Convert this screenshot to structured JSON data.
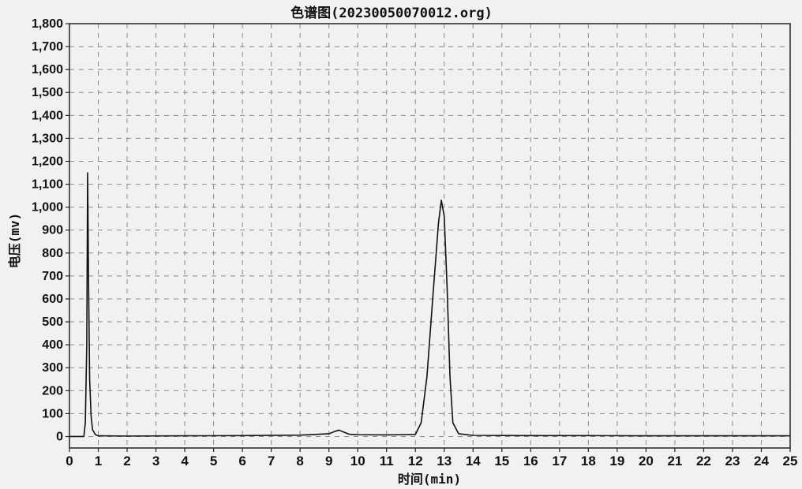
{
  "chart_data": {
    "type": "line",
    "title": "色谱图(20230050070012.org)",
    "xlabel": "时间(min)",
    "ylabel": "电压(mv)",
    "xlim": [
      0,
      25
    ],
    "ylim": [
      -50,
      1800
    ],
    "grid": true,
    "legend": "none",
    "x_ticks": [
      "0",
      "1",
      "2",
      "3",
      "4",
      "5",
      "6",
      "7",
      "8",
      "9",
      "10",
      "11",
      "12",
      "13",
      "14",
      "15",
      "16",
      "17",
      "18",
      "19",
      "20",
      "21",
      "22",
      "23",
      "24",
      "25"
    ],
    "y_ticks": [
      "1,800",
      "1,700",
      "1,600",
      "1,500",
      "1,400",
      "1,300",
      "1,200",
      "1,100",
      "1,000",
      "900",
      "800",
      "700",
      "600",
      "500",
      "400",
      "300",
      "200",
      "100",
      "0"
    ],
    "series": [
      {
        "x": [
          0,
          0.5,
          0.55,
          0.6,
          0.63,
          0.66,
          0.7,
          0.75,
          0.8,
          0.9,
          1.0,
          2,
          4,
          6,
          8,
          9.0,
          9.2,
          9.35,
          9.5,
          9.7,
          10,
          11,
          12,
          12.2,
          12.4,
          12.6,
          12.8,
          12.9,
          13.0,
          13.1,
          13.2,
          13.3,
          13.5,
          14,
          16,
          18,
          20,
          22,
          24,
          25
        ],
        "y": [
          0,
          0,
          60,
          400,
          1150,
          700,
          250,
          90,
          30,
          8,
          3,
          2,
          3,
          4,
          6,
          12,
          22,
          28,
          20,
          10,
          8,
          7,
          9,
          60,
          260,
          600,
          930,
          1030,
          960,
          650,
          260,
          60,
          12,
          5,
          4,
          4,
          3,
          3,
          3,
          3
        ],
        "color": "#111111"
      }
    ]
  }
}
